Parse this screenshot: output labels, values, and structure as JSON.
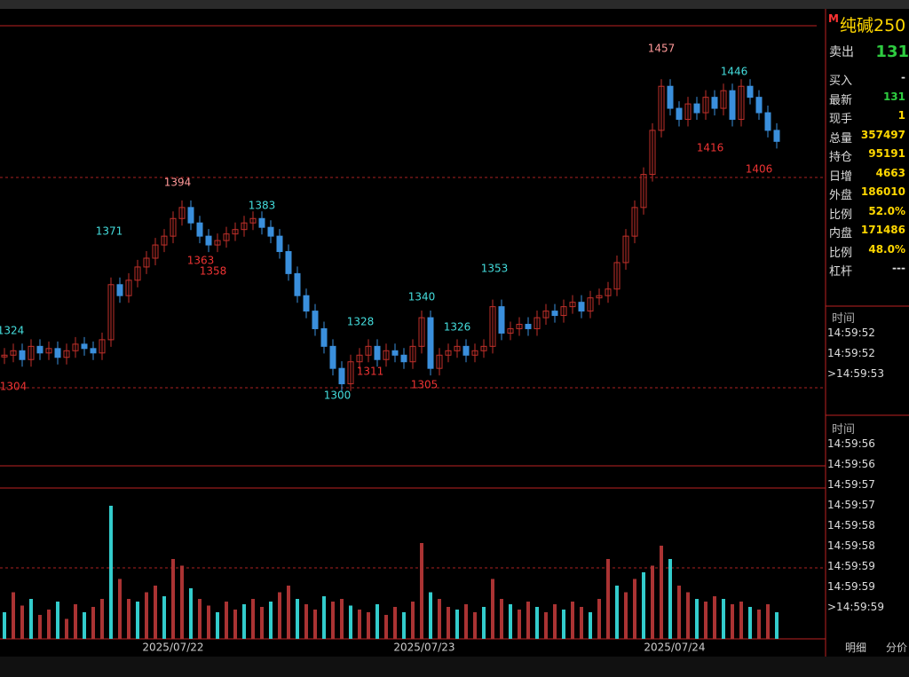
{
  "quote": {
    "marker": "M",
    "symbol": "纯碱250",
    "rows": [
      {
        "label": "卖出",
        "value": "131"
      },
      {
        "label": "买入",
        "value": "-"
      },
      {
        "label": "最新",
        "value": "131"
      },
      {
        "label": "现手",
        "value": "1"
      },
      {
        "label": "总量",
        "value": "357497"
      },
      {
        "label": "持仓",
        "value": "95191"
      },
      {
        "label": "日增",
        "value": "4663"
      },
      {
        "label": "外盘",
        "value": "186010"
      },
      {
        "label": "比例",
        "value": "52.0%"
      },
      {
        "label": "内盘",
        "value": "171486"
      },
      {
        "label": "比例",
        "value": "48.0%"
      },
      {
        "label": "杠杆",
        "value": "---"
      }
    ]
  },
  "ticks_top": {
    "header": "时间",
    "times": [
      "14:59:52",
      "14:59:52",
      ">14:59:53"
    ]
  },
  "ticks_bottom": {
    "header": "时间",
    "times": [
      "14:59:56",
      "14:59:56",
      "14:59:57",
      "14:59:57",
      "14:59:58",
      "14:59:58",
      "14:59:59",
      "14:59:59",
      ">14:59:59"
    ]
  },
  "tabs": [
    "明细",
    "分价"
  ],
  "chart": {
    "closes": [
      1318,
      1320,
      1316,
      1322,
      1319,
      1321,
      1317,
      1320,
      1323,
      1321,
      1319,
      1325,
      1350,
      1345,
      1352,
      1358,
      1362,
      1368,
      1372,
      1380,
      1385,
      1378,
      1372,
      1368,
      1370,
      1373,
      1375,
      1378,
      1380,
      1376,
      1372,
      1365,
      1355,
      1345,
      1338,
      1330,
      1322,
      1312,
      1305,
      1315,
      1318,
      1322,
      1316,
      1320,
      1318,
      1315,
      1322,
      1335,
      1312,
      1318,
      1320,
      1322,
      1318,
      1320,
      1322,
      1340,
      1328,
      1330,
      1332,
      1330,
      1335,
      1338,
      1336,
      1340,
      1342,
      1338,
      1344,
      1345,
      1348,
      1360,
      1372,
      1385,
      1400,
      1420,
      1440,
      1430,
      1425,
      1432,
      1428,
      1435,
      1430,
      1438,
      1425,
      1440,
      1435,
      1428,
      1420,
      1415
    ],
    "volumes": [
      20,
      35,
      25,
      30,
      18,
      22,
      28,
      15,
      26,
      20,
      24,
      30,
      100,
      45,
      30,
      28,
      35,
      40,
      32,
      60,
      55,
      38,
      30,
      25,
      20,
      28,
      22,
      26,
      30,
      24,
      28,
      35,
      40,
      30,
      26,
      22,
      32,
      28,
      30,
      25,
      22,
      20,
      26,
      18,
      24,
      20,
      28,
      72,
      35,
      30,
      24,
      22,
      26,
      20,
      24,
      45,
      30,
      26,
      22,
      28,
      24,
      20,
      26,
      22,
      28,
      24,
      20,
      30,
      60,
      40,
      35,
      45,
      50,
      55,
      70,
      60,
      40,
      35,
      30,
      28,
      32,
      30,
      26,
      28,
      24,
      22,
      26,
      20
    ],
    "price_labels": [
      1324,
      1304,
      1371,
      1394,
      1363,
      1358,
      1383,
      1300,
      1328,
      1311,
      1340,
      1305,
      1326,
      1353,
      1457,
      1446,
      1416,
      1406
    ],
    "dates": [
      "2025/07/22",
      "2025/07/23",
      "2025/07/24"
    ]
  }
}
